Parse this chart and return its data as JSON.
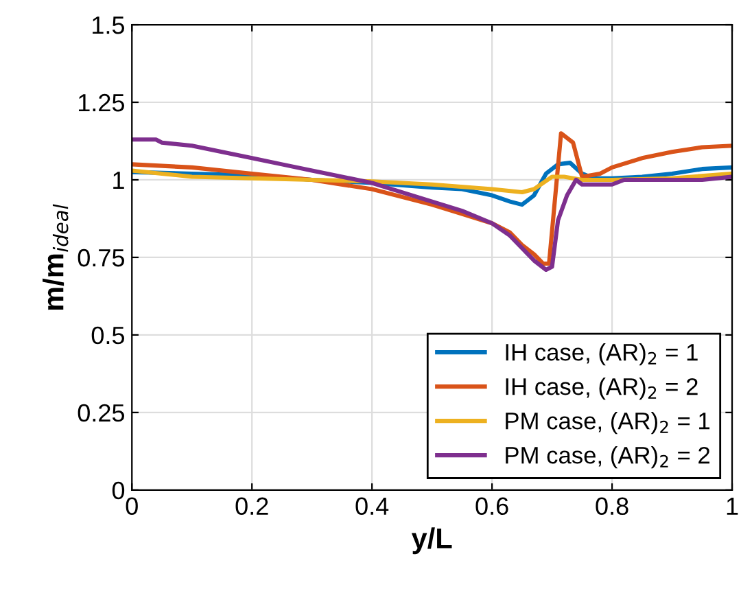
{
  "chart_data": {
    "type": "line",
    "xlabel": "y/L",
    "ylabel": "m/m$_{ideal}$",
    "xlim": [
      0,
      1
    ],
    "ylim": [
      0,
      1.5
    ],
    "xticks": [
      0,
      0.2,
      0.4,
      0.6,
      0.8,
      1
    ],
    "yticks": [
      0,
      0.25,
      0.5,
      0.75,
      1,
      1.25,
      1.5
    ],
    "grid": true,
    "legend": "bottom right",
    "line_style": "solid",
    "marker": "none",
    "series": [
      {
        "name": "IH case, (AR)$_{2}$ = 1",
        "color": "#0072bd",
        "x": [
          0,
          0.1,
          0.2,
          0.3,
          0.4,
          0.5,
          0.55,
          0.6,
          0.63,
          0.65,
          0.67,
          0.69,
          0.71,
          0.73,
          0.75,
          0.77,
          0.8,
          0.85,
          0.9,
          0.95,
          1.0
        ],
        "values": [
          1.025,
          1.02,
          1.015,
          1.0,
          0.99,
          0.975,
          0.97,
          0.95,
          0.93,
          0.92,
          0.95,
          1.02,
          1.05,
          1.055,
          1.02,
          1.005,
          1.005,
          1.01,
          1.02,
          1.035,
          1.04
        ]
      },
      {
        "name": "IH case, (AR)$_{2}$ = 2",
        "color": "#d95319",
        "x": [
          0,
          0.1,
          0.2,
          0.3,
          0.4,
          0.5,
          0.55,
          0.6,
          0.63,
          0.65,
          0.67,
          0.685,
          0.695,
          0.715,
          0.735,
          0.75,
          0.78,
          0.8,
          0.85,
          0.9,
          0.95,
          1.0
        ],
        "values": [
          1.05,
          1.04,
          1.02,
          1.0,
          0.97,
          0.92,
          0.89,
          0.86,
          0.83,
          0.79,
          0.76,
          0.73,
          0.73,
          1.15,
          1.12,
          1.01,
          1.02,
          1.04,
          1.07,
          1.09,
          1.105,
          1.11
        ]
      },
      {
        "name": "PM case, (AR)$_{2}$ = 1",
        "color": "#edb120",
        "x": [
          0,
          0.05,
          0.1,
          0.2,
          0.3,
          0.4,
          0.5,
          0.6,
          0.65,
          0.67,
          0.7,
          0.72,
          0.75,
          0.8,
          0.9,
          1.0
        ],
        "values": [
          1.03,
          1.02,
          1.01,
          1.005,
          1.0,
          0.995,
          0.985,
          0.97,
          0.96,
          0.97,
          1.01,
          1.01,
          1.0,
          1.0,
          1.005,
          1.02
        ]
      },
      {
        "name": "PM case, (AR)$_{2}$ = 2",
        "color": "#7e2f8e",
        "x": [
          0,
          0.04,
          0.05,
          0.1,
          0.15,
          0.2,
          0.25,
          0.3,
          0.35,
          0.4,
          0.45,
          0.5,
          0.55,
          0.6,
          0.63,
          0.65,
          0.67,
          0.69,
          0.7,
          0.71,
          0.725,
          0.74,
          0.75,
          0.8,
          0.82,
          0.9,
          0.95,
          1.0
        ],
        "values": [
          1.13,
          1.13,
          1.12,
          1.11,
          1.09,
          1.07,
          1.05,
          1.03,
          1.01,
          0.99,
          0.96,
          0.93,
          0.9,
          0.86,
          0.82,
          0.78,
          0.74,
          0.71,
          0.72,
          0.87,
          0.95,
          1.0,
          0.985,
          0.985,
          1.0,
          1.0,
          1.0,
          1.01
        ]
      }
    ]
  }
}
